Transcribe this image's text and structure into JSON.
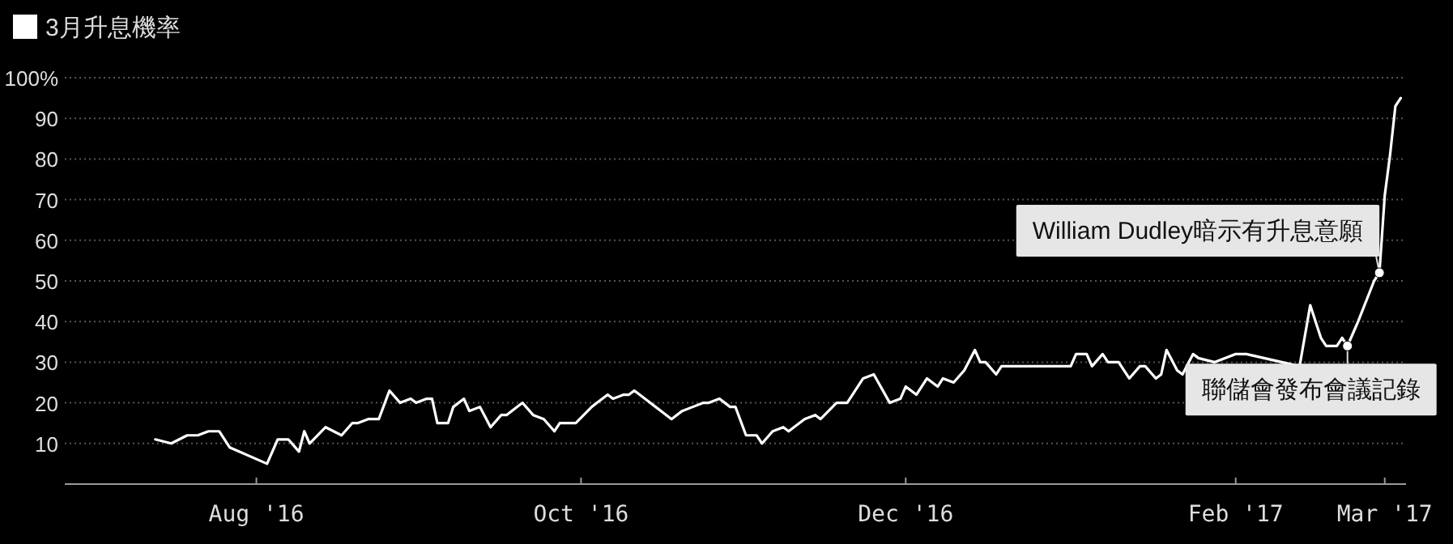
{
  "chart_data": {
    "type": "line",
    "series": [
      {
        "name": "3月升息機率",
        "color": "#ffffff",
        "x": [
          "2016-07-13",
          "2016-07-16",
          "2016-07-19",
          "2016-07-21",
          "2016-07-23",
          "2016-07-25",
          "2016-07-27",
          "2016-08-03",
          "2016-08-05",
          "2016-08-06",
          "2016-08-07",
          "2016-08-09",
          "2016-08-10",
          "2016-08-11",
          "2016-08-14",
          "2016-08-17",
          "2016-08-19",
          "2016-08-20",
          "2016-08-22",
          "2016-08-24",
          "2016-08-26",
          "2016-08-28",
          "2016-08-30",
          "2016-08-31",
          "2016-09-02",
          "2016-09-03",
          "2016-09-04",
          "2016-09-06",
          "2016-09-07",
          "2016-09-09",
          "2016-09-10",
          "2016-09-12",
          "2016-09-14",
          "2016-09-16",
          "2016-09-17",
          "2016-09-20",
          "2016-09-22",
          "2016-09-24",
          "2016-09-26",
          "2016-09-27",
          "2016-09-30",
          "2016-10-03",
          "2016-10-04",
          "2016-10-06",
          "2016-10-07",
          "2016-10-09",
          "2016-10-10",
          "2016-10-11",
          "2016-10-13",
          "2016-10-15",
          "2016-10-18",
          "2016-10-20",
          "2016-10-22",
          "2016-10-24",
          "2016-10-25",
          "2016-10-27",
          "2016-10-29",
          "2016-10-30",
          "2016-11-01",
          "2016-11-03",
          "2016-11-04",
          "2016-11-06",
          "2016-11-08",
          "2016-11-09",
          "2016-11-12",
          "2016-11-14",
          "2016-11-15",
          "2016-11-18",
          "2016-11-20",
          "2016-11-23",
          "2016-11-25",
          "2016-11-28",
          "2016-11-30",
          "2016-12-01",
          "2016-12-03",
          "2016-12-05",
          "2016-12-07",
          "2016-12-08",
          "2016-12-10",
          "2016-12-12",
          "2016-12-14",
          "2016-12-15",
          "2016-12-16",
          "2016-12-18",
          "2016-12-19",
          "2016-12-21",
          "2017-01-01",
          "2017-01-02",
          "2017-01-04",
          "2017-01-05",
          "2017-01-07",
          "2017-01-08",
          "2017-01-10",
          "2017-01-12",
          "2017-01-14",
          "2017-01-15",
          "2017-01-17",
          "2017-01-18",
          "2017-01-19",
          "2017-01-21",
          "2017-01-22",
          "2017-01-24",
          "2017-01-25",
          "2017-01-28",
          "2017-02-01",
          "2017-02-03",
          "2017-02-13",
          "2017-02-15",
          "2017-02-17",
          "2017-02-18",
          "2017-02-20",
          "2017-02-21",
          "2017-02-22",
          "2017-02-23",
          "2017-02-24",
          "2017-02-27",
          "2017-02-28",
          "2017-03-01",
          "2017-03-02",
          "2017-03-03",
          "2017-03-04"
        ],
        "values": [
          11,
          10,
          12,
          12,
          13,
          13,
          9,
          5,
          11,
          11,
          11,
          8,
          13,
          10,
          14,
          12,
          15,
          15,
          16,
          16,
          23,
          20,
          21,
          20,
          21,
          21,
          15,
          15,
          19,
          21,
          18,
          19,
          14,
          17,
          17,
          20,
          17,
          16,
          13,
          15,
          15,
          19,
          20,
          22,
          21,
          22,
          22,
          23,
          21,
          19,
          16,
          18,
          19,
          20,
          20,
          21,
          19,
          19,
          12,
          12,
          10,
          13,
          14,
          13,
          16,
          17,
          16,
          20,
          20,
          26,
          27,
          20,
          21,
          24,
          22,
          26,
          24,
          26,
          25,
          28,
          33,
          30,
          30,
          27,
          29,
          29,
          29,
          32,
          32,
          29,
          32,
          30,
          30,
          26,
          29,
          29,
          26,
          27,
          33,
          28,
          27,
          32,
          31,
          30,
          32,
          32,
          29,
          44,
          36,
          34,
          34,
          36,
          34,
          37,
          40,
          50,
          52,
          71,
          81,
          93,
          95
        ]
      }
    ],
    "xlim": [
      "2016-06-26",
      "2017-03-05"
    ],
    "xticks": [
      {
        "value": "2016-08-01",
        "label": "Aug '16"
      },
      {
        "value": "2016-10-01",
        "label": "Oct '16"
      },
      {
        "value": "2016-12-01",
        "label": "Dec '16"
      },
      {
        "value": "2017-02-01",
        "label": "Feb '17"
      },
      {
        "value": "2017-03-01",
        "label": "Mar '17"
      }
    ],
    "ylim": [
      0,
      100
    ],
    "yticks": [
      10,
      20,
      30,
      40,
      50,
      60,
      70,
      80,
      90,
      {
        "value": 100,
        "label": "100%"
      }
    ],
    "grid": "y",
    "line_style": "solid",
    "legend": "top left",
    "annotations": [
      {
        "text": "William Dudley暗示有升息意願",
        "x": "2017-02-28",
        "y": 52
      },
      {
        "text": "聯儲會發布會議記錄",
        "x": "2017-02-22",
        "y": 34
      }
    ]
  }
}
